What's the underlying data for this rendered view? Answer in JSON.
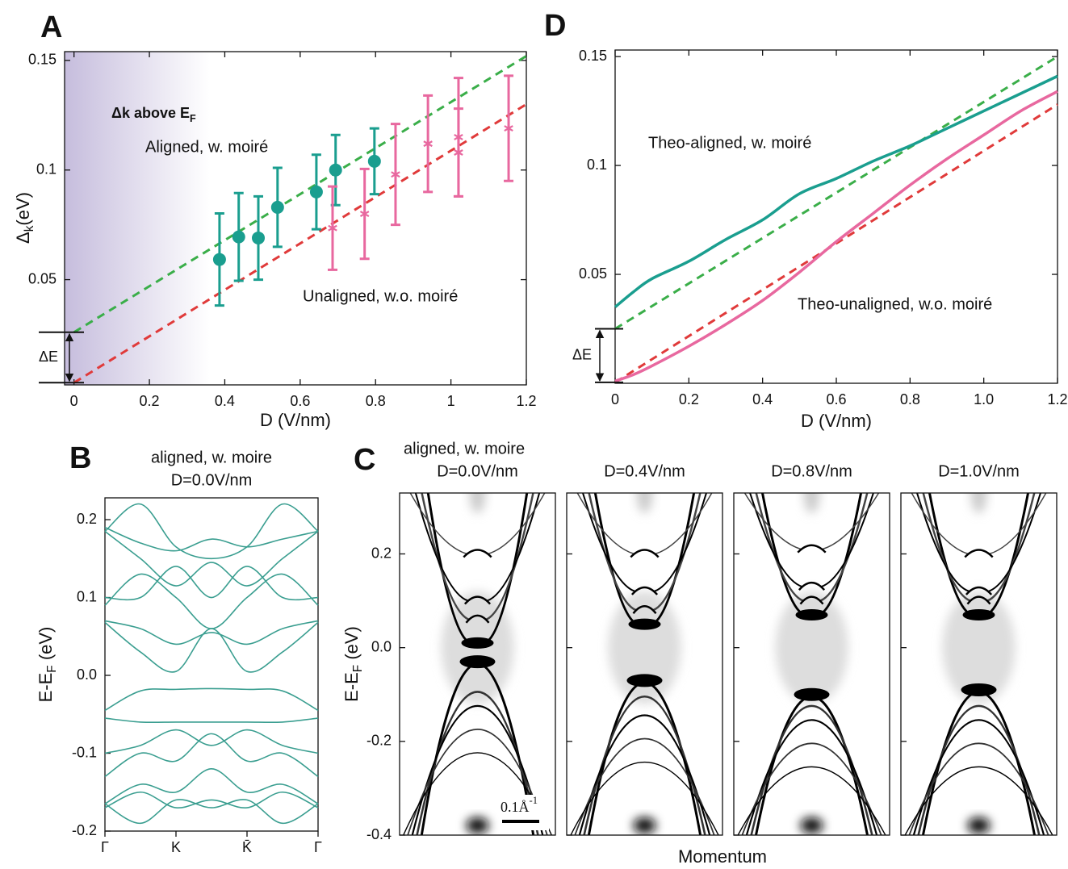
{
  "chart_data": [
    {
      "type": "scatter",
      "label": "A",
      "xlabel": "D (V/nm)",
      "ylabel": {
        "text": "Δ",
        "sub": "k",
        "tail": "(eV)"
      },
      "annotation": {
        "text": "Δk above E",
        "sub": "F"
      },
      "delta_label": "ΔE",
      "xlim": [
        -0.025,
        1.2
      ],
      "ylim": [
        0.002,
        0.154
      ],
      "xticks": [
        0,
        0.2,
        0.4,
        0.6,
        0.8,
        1,
        1.2
      ],
      "yticks": [
        0.05,
        0.1,
        0.15
      ],
      "shade": {
        "x": [
          -0.025,
          0.36
        ],
        "color": "#c6bddd"
      },
      "series": [
        {
          "name": "Aligned, w. moiré",
          "color": "#1a9e8f",
          "marker": "circle",
          "x": [
            0.386,
            0.437,
            0.489,
            0.54,
            0.643,
            0.694,
            0.797
          ],
          "values": [
            0.0592,
            0.0695,
            0.069,
            0.083,
            0.09,
            0.1,
            0.104
          ],
          "errors": [
            0.021,
            0.02,
            0.019,
            0.018,
            0.017,
            0.016,
            0.015
          ]
        },
        {
          "name": "Unaligned, w.o. moiré",
          "color": "#e8689f",
          "marker": "asterisk",
          "x": [
            0.686,
            0.771,
            0.853,
            0.939,
            1.02,
            1.02,
            1.153
          ],
          "values": [
            0.0735,
            0.08,
            0.098,
            0.112,
            0.115,
            0.108,
            0.119
          ],
          "errors": [
            0.019,
            0.0205,
            0.023,
            0.022,
            0.027,
            0.02,
            0.024
          ]
        }
      ],
      "fits": [
        {
          "color": "#3aae49",
          "x": [
            0,
            1.2
          ],
          "values": [
            0.026,
            0.152
          ]
        },
        {
          "color": "#e03a3a",
          "x": [
            0,
            1.2
          ],
          "values": [
            0.003,
            0.13
          ]
        }
      ]
    },
    {
      "type": "line",
      "label": "D",
      "xlabel": "D (V/nm)",
      "delta_label": "ΔE",
      "xlim": [
        0,
        1.2
      ],
      "ylim": [
        0,
        0.153
      ],
      "xticks": [
        0,
        0.2,
        0.4,
        0.6,
        0.8,
        {
          "value": 1,
          "label": "1.0"
        },
        1.2
      ],
      "yticks": [
        0.05,
        0.1,
        0.15
      ],
      "x": [
        0,
        0.05,
        0.1,
        0.2,
        0.3,
        0.4,
        0.5,
        0.6,
        0.7,
        0.8,
        0.9,
        1,
        1.1,
        1.2
      ],
      "series": [
        {
          "name": "Theo-aligned, w. moiré",
          "color": "#1a9e8f",
          "values": [
            0.035,
            0.042,
            0.048,
            0.056,
            0.066,
            0.075,
            0.087,
            0.094,
            0.102,
            0.109,
            0.117,
            0.125,
            0.133,
            0.141
          ]
        },
        {
          "name": "Theo-unaligned, w.o. moiré",
          "color": "#e8689f",
          "values": [
            0.001,
            0.004,
            0.008,
            0.017,
            0.027,
            0.038,
            0.051,
            0.065,
            0.078,
            0.091,
            0.103,
            0.114,
            0.125,
            0.134
          ]
        }
      ],
      "fits": [
        {
          "color": "#3aae49",
          "x": [
            0,
            1.2
          ],
          "values": [
            0.025,
            0.15
          ]
        },
        {
          "color": "#e03a3a",
          "x": [
            0,
            1.2
          ],
          "values": [
            0.0004,
            0.128
          ]
        }
      ]
    },
    {
      "type": "line",
      "label": "B",
      "title": [
        "aligned, w. moire",
        "D=0.0V/nm"
      ],
      "ylabel": {
        "text": "E-E",
        "sub": "F",
        "tail": " (eV)"
      },
      "xlim": [
        0,
        3
      ],
      "ylim": [
        -0.2,
        0.228
      ],
      "xticks": [
        {
          "value": 0,
          "label": "Γ"
        },
        {
          "value": 1,
          "label": "K"
        },
        {
          "value": 2,
          "label": "K̄"
        },
        {
          "value": 3,
          "label": "Γ"
        }
      ],
      "yticks": [
        0.2,
        0.1,
        {
          "value": 0,
          "label": "0.0"
        },
        -0.1,
        -0.2
      ],
      "color": "#3a9e90",
      "x": [
        0,
        0.5,
        1,
        1.5,
        2,
        2.5,
        3
      ],
      "series": [
        {
          "values": [
            0.068,
            0.03,
            0.005,
            0.06,
            0.005,
            0.03,
            0.068
          ]
        },
        {
          "values": [
            0.07,
            0.06,
            0.04,
            0.055,
            0.04,
            0.06,
            0.07
          ]
        },
        {
          "values": [
            0.09,
            0.13,
            0.1,
            0.06,
            0.1,
            0.13,
            0.09
          ]
        },
        {
          "values": [
            0.1,
            0.1,
            0.14,
            0.1,
            0.14,
            0.1,
            0.1
          ]
        },
        {
          "values": [
            0.185,
            0.15,
            0.115,
            0.145,
            0.115,
            0.15,
            0.185
          ]
        },
        {
          "values": [
            0.185,
            0.22,
            0.165,
            0.15,
            0.165,
            0.22,
            0.185
          ]
        },
        {
          "values": [
            0.19,
            0.17,
            0.16,
            0.175,
            0.165,
            0.175,
            0.185
          ]
        },
        {
          "values": [
            -0.045,
            -0.02,
            -0.018,
            -0.017,
            -0.018,
            -0.02,
            -0.045
          ]
        },
        {
          "values": [
            -0.055,
            -0.06,
            -0.06,
            -0.06,
            -0.06,
            -0.06,
            -0.055
          ]
        },
        {
          "values": [
            -0.1,
            -0.09,
            -0.07,
            -0.09,
            -0.07,
            -0.09,
            -0.1
          ]
        },
        {
          "values": [
            -0.13,
            -0.1,
            -0.11,
            -0.075,
            -0.11,
            -0.1,
            -0.13
          ]
        },
        {
          "values": [
            -0.165,
            -0.14,
            -0.15,
            -0.12,
            -0.15,
            -0.14,
            -0.165
          ]
        },
        {
          "values": [
            -0.165,
            -0.19,
            -0.16,
            -0.17,
            -0.16,
            -0.19,
            -0.165
          ]
        },
        {
          "values": [
            -0.17,
            -0.15,
            -0.17,
            -0.16,
            -0.17,
            -0.15,
            -0.17
          ]
        }
      ]
    },
    {
      "type": "image",
      "label": "C",
      "subtitle": "aligned, w. moire",
      "ylabel": {
        "text": "E-E",
        "sub": "F",
        "tail": " (eV)"
      },
      "xlabel": "Momentum",
      "ylim": [
        -0.4,
        0.33
      ],
      "yticks": [
        0.2,
        {
          "value": 0,
          "label": "0.0"
        },
        -0.2,
        -0.4
      ],
      "panels": [
        "D=0.0V/nm",
        "D=0.4V/nm",
        "D=0.8V/nm",
        "D=1.0V/nm"
      ],
      "scale_bar": {
        "text": "0.1Å",
        "sup": "-1"
      }
    }
  ]
}
